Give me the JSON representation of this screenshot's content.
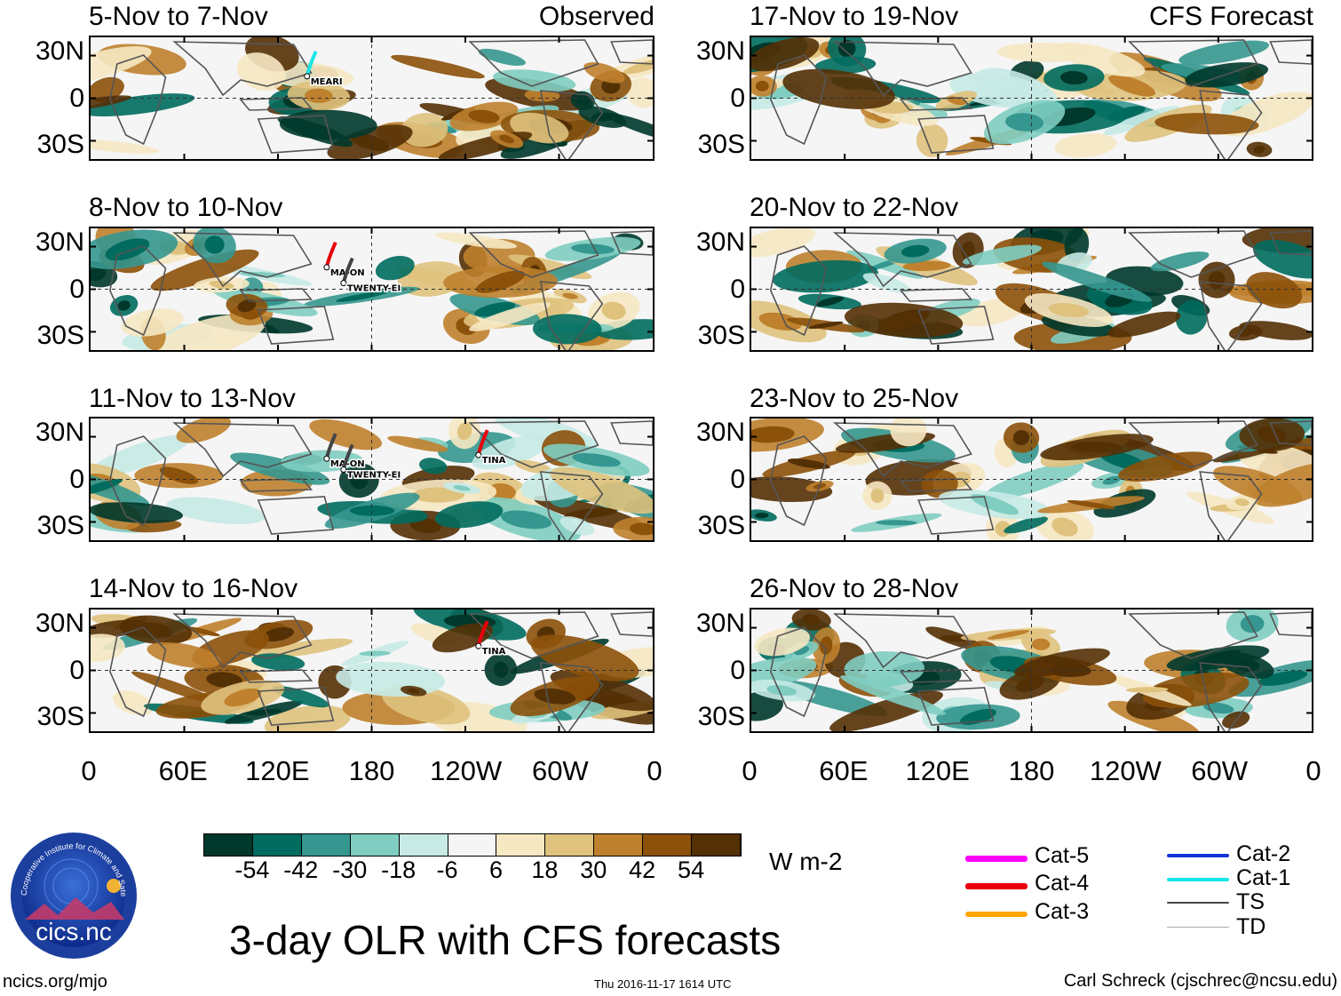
{
  "panels": [
    {
      "title": "5-Nov to 7-Nov",
      "tag": "Observed",
      "storms": [
        {
          "name": "MEARI",
          "category": "Cat-1"
        }
      ]
    },
    {
      "title": "17-Nov to 19-Nov",
      "tag": "CFS Forecast",
      "storms": []
    },
    {
      "title": "8-Nov to 10-Nov",
      "tag": "",
      "storms": [
        {
          "name": "MA-ON",
          "category": "Cat-4"
        },
        {
          "name": "TWENTY-EI",
          "category": "TS"
        }
      ]
    },
    {
      "title": "20-Nov to 22-Nov",
      "tag": "",
      "storms": []
    },
    {
      "title": "11-Nov to 13-Nov",
      "tag": "",
      "storms": [
        {
          "name": "MA-ON",
          "category": "TS"
        },
        {
          "name": "TWENTY-EI",
          "category": "TS"
        },
        {
          "name": "TINA",
          "category": "Cat-4"
        }
      ]
    },
    {
      "title": "23-Nov to 25-Nov",
      "tag": "",
      "storms": []
    },
    {
      "title": "14-Nov to 16-Nov",
      "tag": "",
      "storms": [
        {
          "name": "TINA",
          "category": "Cat-4"
        }
      ]
    },
    {
      "title": "26-Nov to 28-Nov",
      "tag": "",
      "storms": []
    }
  ],
  "lat_labels": [
    "30N",
    "0",
    "30S"
  ],
  "lon_labels": [
    "0",
    "60E",
    "120E",
    "180",
    "120W",
    "60W",
    "0"
  ],
  "colorbar": {
    "colors": [
      "#00382b",
      "#006b5e",
      "#35978f",
      "#80cdc1",
      "#c7eae5",
      "#f5f5f5",
      "#f6e8c3",
      "#dfc27d",
      "#bf812d",
      "#8c510a",
      "#543005"
    ],
    "ticks": [
      "-54",
      "-42",
      "-30",
      "-18",
      "-6",
      "6",
      "18",
      "30",
      "42",
      "54"
    ],
    "units": "W m-2"
  },
  "legend": [
    {
      "label": "Cat-5",
      "color": "#ff00ff"
    },
    {
      "label": "Cat-4",
      "color": "#e8000b"
    },
    {
      "label": "Cat-3",
      "color": "#ffa500"
    },
    {
      "label": "Cat-2",
      "color": "#1433d6"
    },
    {
      "label": "Cat-1",
      "color": "#19e6e6"
    },
    {
      "label": "TS",
      "color": "#444444"
    },
    {
      "label": "TD",
      "color": "#aaaaaa"
    }
  ],
  "main_title": "3-day OLR with CFS forecasts",
  "logo": {
    "text": "cics.nc",
    "ring_text": "Cooperative Institute for Climate and Satellites"
  },
  "footer": {
    "left": "ncics.org/mjo",
    "center": "Thu 2016-11-17 1614 UTC",
    "right": "Carl Schreck (cjschrec@ncsu.edu)"
  }
}
